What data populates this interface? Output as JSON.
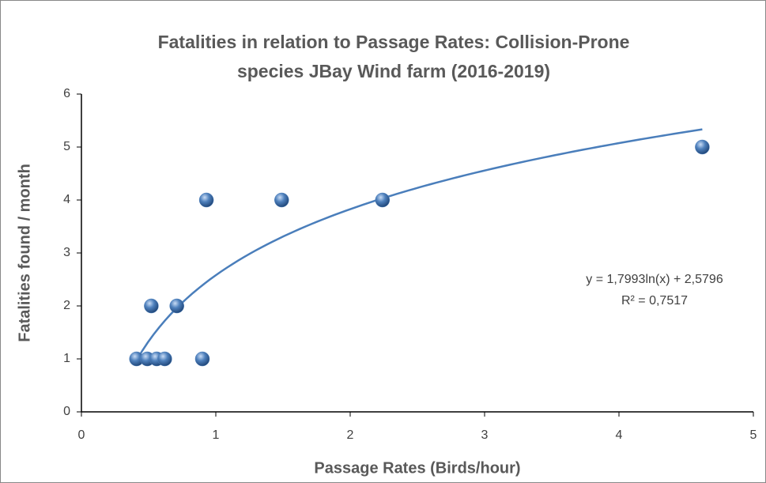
{
  "chart_data": {
    "type": "scatter",
    "title": [
      "Fatalities in relation to Passage Rates: Collision-Prone",
      "species JBay Wind farm (2016-2019)"
    ],
    "x_label": "Passage Rates (Birds/hour)",
    "y_label": "Fatalities found / month",
    "series": [
      {
        "name": "Fatalities",
        "color": "#4f81bd",
        "x": [
          0.41,
          0.49,
          0.56,
          0.62,
          0.52,
          0.71,
          0.9,
          0.93,
          1.49,
          2.24,
          4.62
        ],
        "values": [
          1,
          1,
          1,
          1,
          2,
          2,
          1,
          4,
          4,
          4,
          5
        ]
      }
    ],
    "trendline": {
      "type": "log",
      "a": 1.7993,
      "b": 2.5796,
      "color": "#4a7ebb",
      "equation": "y = 1,7993ln(x) + 2,5796",
      "r2_label": "R² = 0,7517"
    },
    "xlim": [
      0,
      5
    ],
    "xticks": [
      0,
      1,
      2,
      3,
      4,
      5
    ],
    "ylim": [
      0,
      6
    ],
    "yticks": [
      0,
      1,
      2,
      3,
      4,
      5,
      6
    ],
    "grid": false
  }
}
